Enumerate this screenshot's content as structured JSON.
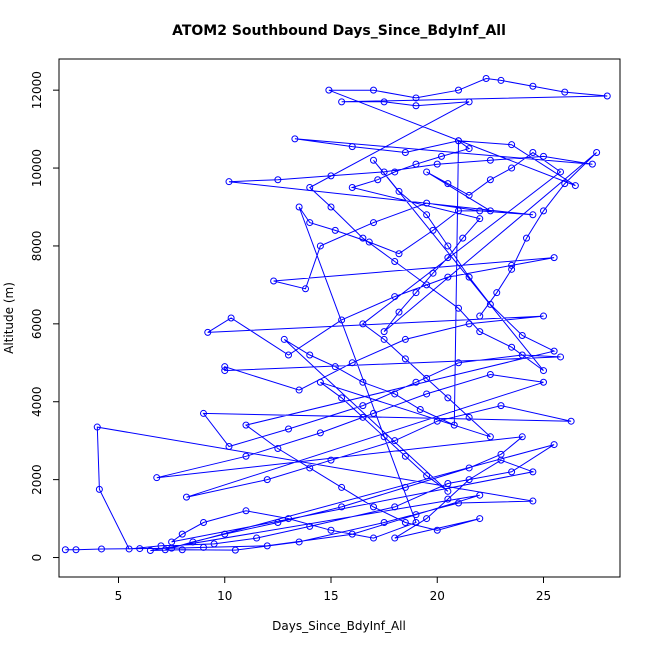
{
  "chart_data": {
    "type": "scatter",
    "title": "ATOM2 Southbound Days_Since_BdyInf_All",
    "xlabel": "Days_Since_BdyInf_All",
    "ylabel": "Altitude (m)",
    "xlim": [
      2.2,
      28.6
    ],
    "ylim": [
      -500,
      12800
    ],
    "x_ticks": [
      5,
      10,
      15,
      20,
      25
    ],
    "y_ticks": [
      0,
      2000,
      4000,
      6000,
      8000,
      10000,
      12000
    ],
    "series_color": "#0000ff",
    "style": "lines+open-circles",
    "series": [
      {
        "values": [
          [
            2.5,
            200
          ],
          [
            3.0,
            200
          ],
          [
            4.2,
            220
          ],
          [
            6.0,
            230
          ],
          [
            7.5,
            240
          ],
          [
            9.0,
            260
          ],
          [
            12.0,
            300
          ],
          [
            16.0,
            600
          ],
          [
            19.0,
            1100
          ],
          [
            22.0,
            1600
          ],
          [
            6.5,
            180
          ],
          [
            8.0,
            200
          ],
          [
            10.5,
            190
          ],
          [
            13.5,
            400
          ],
          [
            17.5,
            900
          ],
          [
            21.0,
            1400
          ],
          [
            24.5,
            1450
          ],
          [
            4.0,
            3350
          ],
          [
            4.1,
            1750
          ],
          [
            5.5,
            220
          ],
          [
            7.0,
            300
          ],
          [
            9.5,
            350
          ],
          [
            11.5,
            500
          ],
          [
            14.0,
            800
          ],
          [
            18.0,
            1300
          ],
          [
            20.5,
            1900
          ],
          [
            23.5,
            2200
          ],
          [
            25.5,
            2900
          ],
          [
            7.2,
            200
          ],
          [
            8.5,
            400
          ],
          [
            10.0,
            600
          ],
          [
            12.5,
            900
          ],
          [
            15.5,
            1300
          ],
          [
            18.5,
            1800
          ],
          [
            21.5,
            2300
          ],
          [
            23.0,
            2650
          ],
          [
            24.0,
            3100
          ],
          [
            6.8,
            2050
          ],
          [
            11.0,
            2600
          ],
          [
            14.5,
            3200
          ],
          [
            17.0,
            3700
          ],
          [
            19.5,
            4200
          ],
          [
            22.5,
            4700
          ],
          [
            25.0,
            4500
          ],
          [
            8.2,
            1550
          ],
          [
            12.0,
            2000
          ],
          [
            15.0,
            2500
          ],
          [
            18.0,
            3000
          ],
          [
            20.0,
            3500
          ],
          [
            23.0,
            3900
          ],
          [
            26.3,
            3500
          ],
          [
            9.0,
            3700
          ],
          [
            10.2,
            2850
          ],
          [
            13.0,
            3300
          ],
          [
            16.5,
            3900
          ],
          [
            19.0,
            4500
          ],
          [
            21.0,
            5000
          ],
          [
            24.0,
            5200
          ],
          [
            25.8,
            5150
          ],
          [
            10.0,
            4800
          ],
          [
            10.0,
            4900
          ],
          [
            13.5,
            4300
          ],
          [
            16.0,
            5000
          ],
          [
            18.5,
            5600
          ],
          [
            21.5,
            6000
          ],
          [
            25.0,
            6200
          ],
          [
            9.2,
            5780
          ],
          [
            10.3,
            6150
          ],
          [
            13.0,
            5200
          ],
          [
            15.5,
            6100
          ],
          [
            18.0,
            6700
          ],
          [
            20.5,
            7200
          ],
          [
            23.5,
            7500
          ],
          [
            25.5,
            7700
          ],
          [
            12.3,
            7100
          ],
          [
            13.8,
            6900
          ],
          [
            14.5,
            8000
          ],
          [
            17.0,
            8600
          ],
          [
            19.5,
            9100
          ],
          [
            22.0,
            8900
          ],
          [
            24.5,
            8800
          ],
          [
            10.2,
            9650
          ],
          [
            12.5,
            9700
          ],
          [
            15.0,
            9800
          ],
          [
            17.5,
            9900
          ],
          [
            20.0,
            10100
          ],
          [
            22.5,
            10200
          ],
          [
            25.0,
            10300
          ],
          [
            27.3,
            10100
          ],
          [
            13.3,
            10750
          ],
          [
            16.0,
            10550
          ],
          [
            18.5,
            10400
          ],
          [
            21.0,
            10700
          ],
          [
            23.5,
            10600
          ],
          [
            26.5,
            9550
          ],
          [
            14.9,
            12000
          ],
          [
            17.0,
            12000
          ],
          [
            19.0,
            11800
          ],
          [
            21.0,
            12000
          ],
          [
            22.3,
            12300
          ],
          [
            23.0,
            12250
          ],
          [
            24.5,
            12100
          ],
          [
            26.0,
            11950
          ],
          [
            28.0,
            11850
          ],
          [
            15.5,
            11700
          ],
          [
            17.5,
            11700
          ],
          [
            19.0,
            11600
          ],
          [
            21.5,
            11700
          ],
          [
            14.0,
            9500
          ],
          [
            15.0,
            9000
          ],
          [
            16.5,
            8200
          ],
          [
            18.0,
            7600
          ],
          [
            19.5,
            7000
          ],
          [
            21.0,
            6400
          ],
          [
            22.0,
            5800
          ],
          [
            23.5,
            5400
          ],
          [
            25.0,
            4800
          ],
          [
            17.0,
            10200
          ],
          [
            18.2,
            9400
          ],
          [
            19.5,
            8800
          ],
          [
            20.5,
            8000
          ],
          [
            21.5,
            7200
          ],
          [
            22.5,
            6500
          ],
          [
            24.0,
            5700
          ],
          [
            25.5,
            5300
          ],
          [
            11.0,
            3400
          ],
          [
            12.5,
            2800
          ],
          [
            14.0,
            2300
          ],
          [
            15.5,
            1800
          ],
          [
            17.0,
            1300
          ],
          [
            18.5,
            900
          ],
          [
            20.0,
            700
          ],
          [
            22.0,
            1000
          ],
          [
            18.0,
            500
          ],
          [
            19.5,
            1000
          ],
          [
            20.5,
            1500
          ],
          [
            21.5,
            2000
          ],
          [
            23.0,
            2500
          ],
          [
            24.5,
            2200
          ],
          [
            7.5,
            400
          ],
          [
            8.0,
            600
          ],
          [
            9.0,
            900
          ],
          [
            11.0,
            1200
          ],
          [
            13.0,
            1000
          ],
          [
            15.0,
            700
          ],
          [
            17.0,
            500
          ],
          [
            19.0,
            900
          ],
          [
            13.5,
            9000
          ],
          [
            14.0,
            8600
          ],
          [
            15.2,
            8400
          ],
          [
            16.8,
            8100
          ],
          [
            18.2,
            7800
          ],
          [
            19.8,
            8400
          ],
          [
            21.0,
            8900
          ],
          [
            22.5,
            8900
          ],
          [
            19.5,
            9900
          ],
          [
            20.5,
            9600
          ],
          [
            21.5,
            9300
          ],
          [
            22.5,
            9700
          ],
          [
            23.5,
            10000
          ],
          [
            24.5,
            10400
          ],
          [
            25.8,
            9900
          ],
          [
            16.5,
            6000
          ],
          [
            17.5,
            5600
          ],
          [
            18.5,
            5100
          ],
          [
            19.5,
            4600
          ],
          [
            20.5,
            4100
          ],
          [
            21.5,
            3600
          ],
          [
            22.5,
            3100
          ],
          [
            14.5,
            4500
          ],
          [
            15.5,
            4100
          ],
          [
            16.5,
            3600
          ],
          [
            17.5,
            3100
          ],
          [
            18.5,
            2600
          ],
          [
            19.5,
            2100
          ],
          [
            20.5,
            1700
          ],
          [
            12.8,
            5600
          ],
          [
            14.0,
            5200
          ],
          [
            15.2,
            4900
          ],
          [
            16.5,
            4500
          ],
          [
            18.0,
            4200
          ],
          [
            19.2,
            3800
          ],
          [
            20.8,
            3400
          ],
          [
            21.0,
            10700
          ],
          [
            21.5,
            10500
          ],
          [
            20.2,
            10300
          ],
          [
            19.0,
            10100
          ],
          [
            18.0,
            9900
          ],
          [
            17.2,
            9700
          ],
          [
            16.0,
            9500
          ],
          [
            22.0,
            8700
          ],
          [
            21.2,
            8200
          ],
          [
            20.5,
            7700
          ],
          [
            19.8,
            7300
          ],
          [
            19.0,
            6800
          ],
          [
            18.2,
            6300
          ],
          [
            17.5,
            5800
          ],
          [
            27.5,
            10400
          ],
          [
            26.0,
            9600
          ],
          [
            25.0,
            8900
          ],
          [
            24.2,
            8200
          ],
          [
            23.5,
            7400
          ],
          [
            22.8,
            6800
          ],
          [
            22.0,
            6200
          ]
        ]
      }
    ]
  }
}
